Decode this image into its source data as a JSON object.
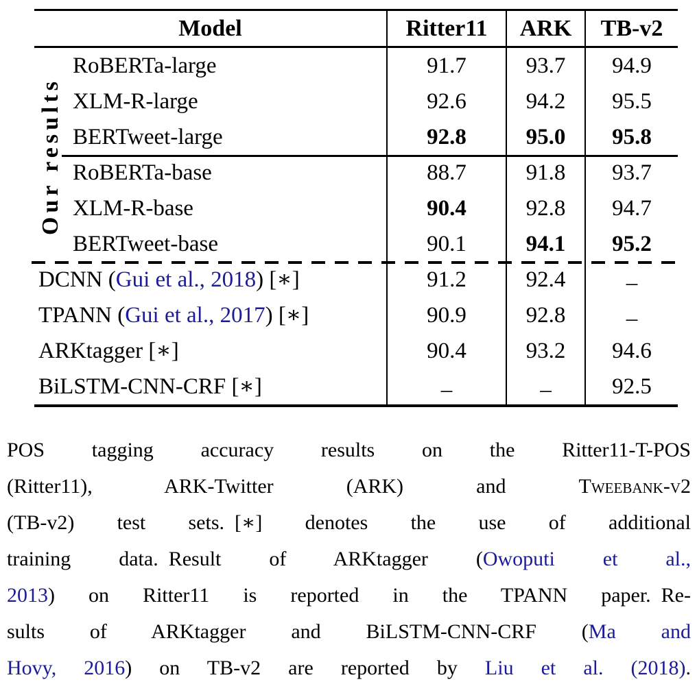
{
  "colors": {
    "text": "#000000",
    "citation_link": "#1b1b9c"
  },
  "table": {
    "side_label": "Our results",
    "headers": [
      {
        "label": "Model"
      },
      {
        "label": "Ritter11"
      },
      {
        "label": "ARK"
      },
      {
        "label": "TB-v2"
      }
    ],
    "groups": [
      {
        "name": "our-results-large",
        "indent": true,
        "rows": [
          {
            "model": [
              {
                "t": "RoBERTa-large"
              }
            ],
            "values": [
              {
                "t": "91.7"
              },
              {
                "t": "93.7"
              },
              {
                "t": "94.9"
              }
            ]
          },
          {
            "model": [
              {
                "t": "XLM-R-large"
              }
            ],
            "values": [
              {
                "t": "92.6"
              },
              {
                "t": "94.2"
              },
              {
                "t": "95.5"
              }
            ]
          },
          {
            "model": [
              {
                "t": "BERTweet-large"
              }
            ],
            "values": [
              {
                "t": "92.8",
                "bold": true
              },
              {
                "t": "95.0",
                "bold": true
              },
              {
                "t": "95.8",
                "bold": true
              }
            ]
          }
        ]
      },
      {
        "name": "our-results-base",
        "indent": true,
        "rows": [
          {
            "model": [
              {
                "t": "RoBERTa-base"
              }
            ],
            "values": [
              {
                "t": "88.7"
              },
              {
                "t": "91.8"
              },
              {
                "t": "93.7"
              }
            ]
          },
          {
            "model": [
              {
                "t": "XLM-R-base"
              }
            ],
            "values": [
              {
                "t": "90.4",
                "bold": true
              },
              {
                "t": "92.8"
              },
              {
                "t": "94.7"
              }
            ]
          },
          {
            "model": [
              {
                "t": "BERTweet-base"
              }
            ],
            "values": [
              {
                "t": "90.1"
              },
              {
                "t": "94.1",
                "bold": true
              },
              {
                "t": "95.2",
                "bold": true
              }
            ]
          }
        ]
      },
      {
        "name": "previous-work",
        "indent": false,
        "rows": [
          {
            "model": [
              {
                "t": "DCNN ("
              },
              {
                "t": "Gui et al., 2018",
                "cite": true
              },
              {
                "t": ") [∗]"
              }
            ],
            "values": [
              {
                "t": "91.2"
              },
              {
                "t": "92.4"
              },
              {
                "t": "–",
                "dash": true
              }
            ]
          },
          {
            "model": [
              {
                "t": "TPANN ("
              },
              {
                "t": "Gui et al., 2017",
                "cite": true
              },
              {
                "t": ") [∗]"
              }
            ],
            "values": [
              {
                "t": "90.9"
              },
              {
                "t": "92.8"
              },
              {
                "t": "–",
                "dash": true
              }
            ]
          },
          {
            "model": [
              {
                "t": "ARKtagger [∗]"
              }
            ],
            "values": [
              {
                "t": "90.4"
              },
              {
                "t": "93.2"
              },
              {
                "t": "94.6"
              }
            ]
          },
          {
            "model": [
              {
                "t": "BiLSTM-CNN-CRF [∗]"
              }
            ],
            "values": [
              {
                "t": "–",
                "dash": true
              },
              {
                "t": "–",
                "dash": true
              },
              {
                "t": "92.5"
              }
            ]
          }
        ]
      }
    ]
  },
  "caption": {
    "lines": [
      {
        "segs": [
          {
            "t": "POS tagging accuracy results on the Ritter11-T-POS"
          }
        ]
      },
      {
        "segs": [
          {
            "t": "(Ritter11), ARK-Twitter (ARK) and "
          },
          {
            "t": "Tweebank-v2",
            "sc": true
          }
        ]
      },
      {
        "segs": [
          {
            "t": "(TB-v2) test sets. [∗] denotes the use of additional"
          }
        ]
      },
      {
        "segs": [
          {
            "t": "training data. Result of ARKtagger ("
          },
          {
            "t": "Owoputi et al.,",
            "cite": true
          }
        ]
      },
      {
        "segs": [
          {
            "t": "2013",
            "cite": true
          },
          {
            "t": ") on Ritter11 is reported in the TPANN paper. Re-"
          }
        ]
      },
      {
        "segs": [
          {
            "t": "sults of ARKtagger and BiLSTM-CNN-CRF ("
          },
          {
            "t": "Ma and",
            "cite": true
          }
        ]
      },
      {
        "segs": [
          {
            "t": "Hovy, 2016",
            "cite": true
          },
          {
            "t": ") on TB-v2 are reported by "
          },
          {
            "t": "Liu et al. (2018)",
            "cite": true
          },
          {
            "t": "."
          }
        ]
      }
    ]
  }
}
